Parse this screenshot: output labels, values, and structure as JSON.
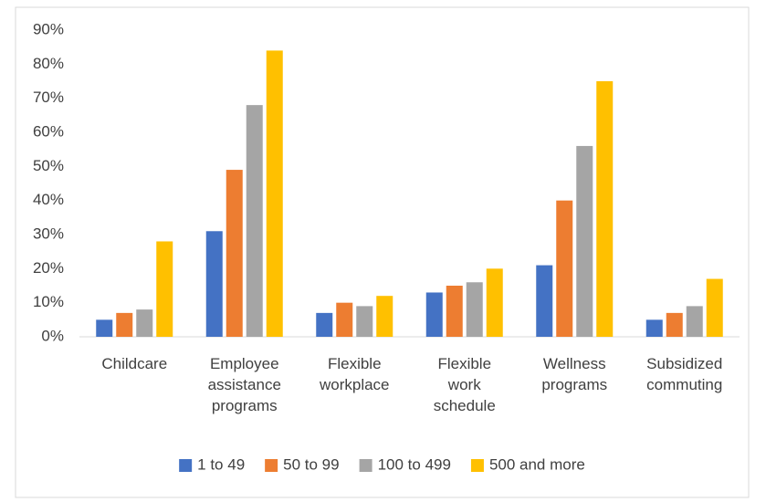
{
  "chart_data": {
    "type": "bar",
    "categories": [
      "Childcare",
      "Employee assistance programs",
      "Flexible workplace",
      "Flexible work schedule",
      "Wellness programs",
      "Subsidized commuting"
    ],
    "series": [
      {
        "name": "1 to 49",
        "color": "#4472c4",
        "values": [
          5,
          31,
          7,
          13,
          21,
          5
        ]
      },
      {
        "name": "50 to 99",
        "color": "#ed7d31",
        "values": [
          7,
          49,
          10,
          15,
          40,
          7
        ]
      },
      {
        "name": "100 to 499",
        "color": "#a5a5a5",
        "values": [
          8,
          68,
          9,
          16,
          56,
          9
        ]
      },
      {
        "name": "500 and more",
        "color": "#ffc000",
        "values": [
          28,
          84,
          12,
          20,
          75,
          17
        ]
      }
    ],
    "ylim": [
      0,
      90
    ],
    "yticks": [
      {
        "value": 0,
        "label": "0%"
      },
      {
        "value": 10,
        "label": "10%"
      },
      {
        "value": 20,
        "label": "20%"
      },
      {
        "value": 30,
        "label": "30%"
      },
      {
        "value": 40,
        "label": "40%"
      },
      {
        "value": 50,
        "label": "50%"
      },
      {
        "value": 60,
        "label": "60%"
      },
      {
        "value": 70,
        "label": "70%"
      },
      {
        "value": 80,
        "label": "80%"
      },
      {
        "value": 90,
        "label": "90%"
      }
    ],
    "grid": false,
    "legend": "bottom"
  }
}
